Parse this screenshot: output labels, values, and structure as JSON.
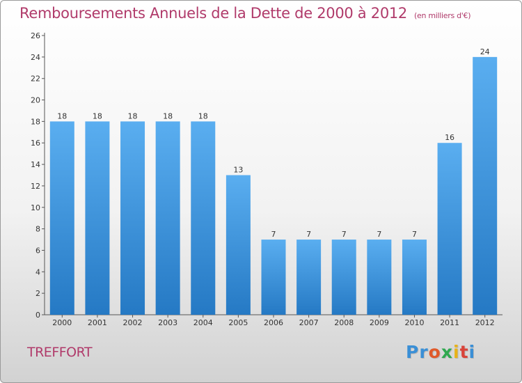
{
  "title": "Remboursements Annuels de la Dette de 2000 à 2012",
  "subtitle": "(en milliers d'€)",
  "commune": "TREFFORT",
  "logo": {
    "text": "Proxiti",
    "letter_colors": [
      "#3a8fd6",
      "#3a8fd6",
      "#e05a2a",
      "#2fa84f",
      "#e8b21a",
      "#d9443a",
      "#3a8fd6"
    ]
  },
  "colors": {
    "bar_top": "#5aaef0",
    "bar_bottom": "#2579c4",
    "accent": "#b03a6a"
  },
  "chart_data": {
    "type": "bar",
    "categories": [
      "2000",
      "2001",
      "2002",
      "2003",
      "2004",
      "2005",
      "2006",
      "2007",
      "2008",
      "2009",
      "2010",
      "2011",
      "2012"
    ],
    "values": [
      18,
      18,
      18,
      18,
      18,
      13,
      7,
      7,
      7,
      7,
      7,
      16,
      24
    ],
    "ylim": [
      0,
      26
    ],
    "yticks": [
      0,
      2,
      4,
      6,
      8,
      10,
      12,
      14,
      16,
      18,
      20,
      22,
      24,
      26
    ],
    "grid": false,
    "legend": "none"
  }
}
